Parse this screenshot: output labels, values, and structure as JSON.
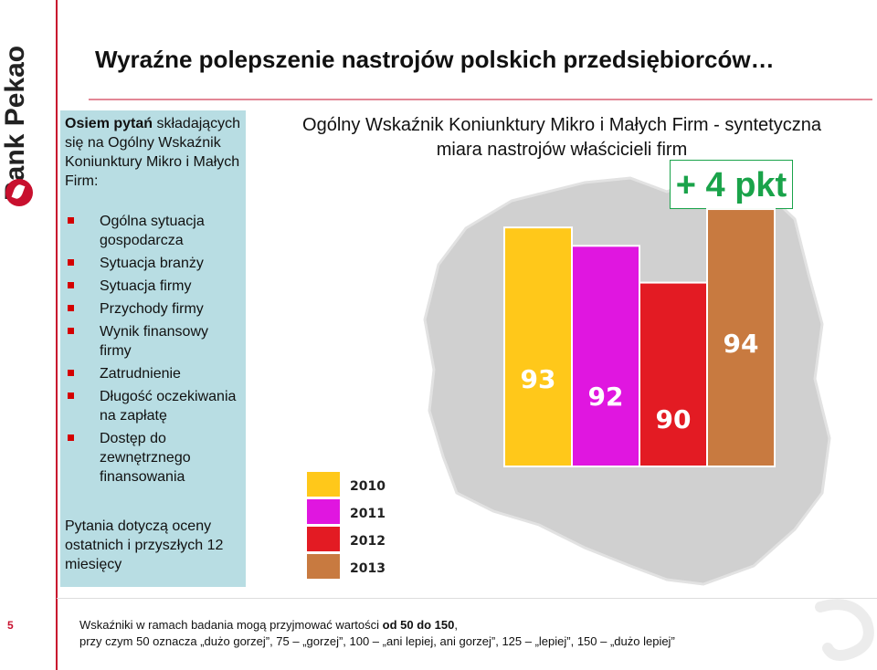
{
  "brand": {
    "name": "Bank Pekao",
    "accent": "#c8102e"
  },
  "slide": {
    "title": "Wyraźne polepszenie nastrojów polskich przedsiębiorców…",
    "page_number": "5"
  },
  "info_panel": {
    "heading_bold": "Osiem pytań",
    "heading_rest": " składających się na Ogólny Wskaźnik Koniunktury Mikro i Małych Firm:",
    "items": [
      "Ogólna sytuacja gospodarcza",
      "Sytuacja branży",
      "Sytuacja firmy",
      "Przychody firmy",
      "Wynik finansowy firmy",
      "Zatrudnienie",
      "Długość oczekiwania na zapłatę",
      "Dostęp do zewnętrznego finansowania"
    ],
    "footer": "Pytania dotyczą oceny ostatnich i przyszłych 12 miesięcy"
  },
  "change_badge": {
    "text": "+ 4 pkt",
    "color": "#1aa34a"
  },
  "note": {
    "line1_prefix": "Wskaźniki w ramach badania mogą przyjmować wartości ",
    "line1_bold": "od 50 do 150",
    "line1_suffix": ",",
    "line2": "przy czym 50 oznacza „dużo gorzej”, 75 – „gorzej”, 100 – „ani lepiej, ani gorzej”, 125 – „lepiej”, 150 – „dużo lepiej”"
  },
  "chart_data": {
    "type": "bar",
    "title": "Ogólny Wskaźnik Koniunktury Mikro i Małych Firm - syntetyczna miara nastrojów właścicieli firm",
    "categories": [
      "2010",
      "2011",
      "2012",
      "2013"
    ],
    "values": [
      93,
      92,
      90,
      94
    ],
    "colors": [
      "#ffc81a",
      "#e016e0",
      "#e31b23",
      "#c87a40"
    ],
    "legend_position": "bottom-left",
    "grid": false
  }
}
